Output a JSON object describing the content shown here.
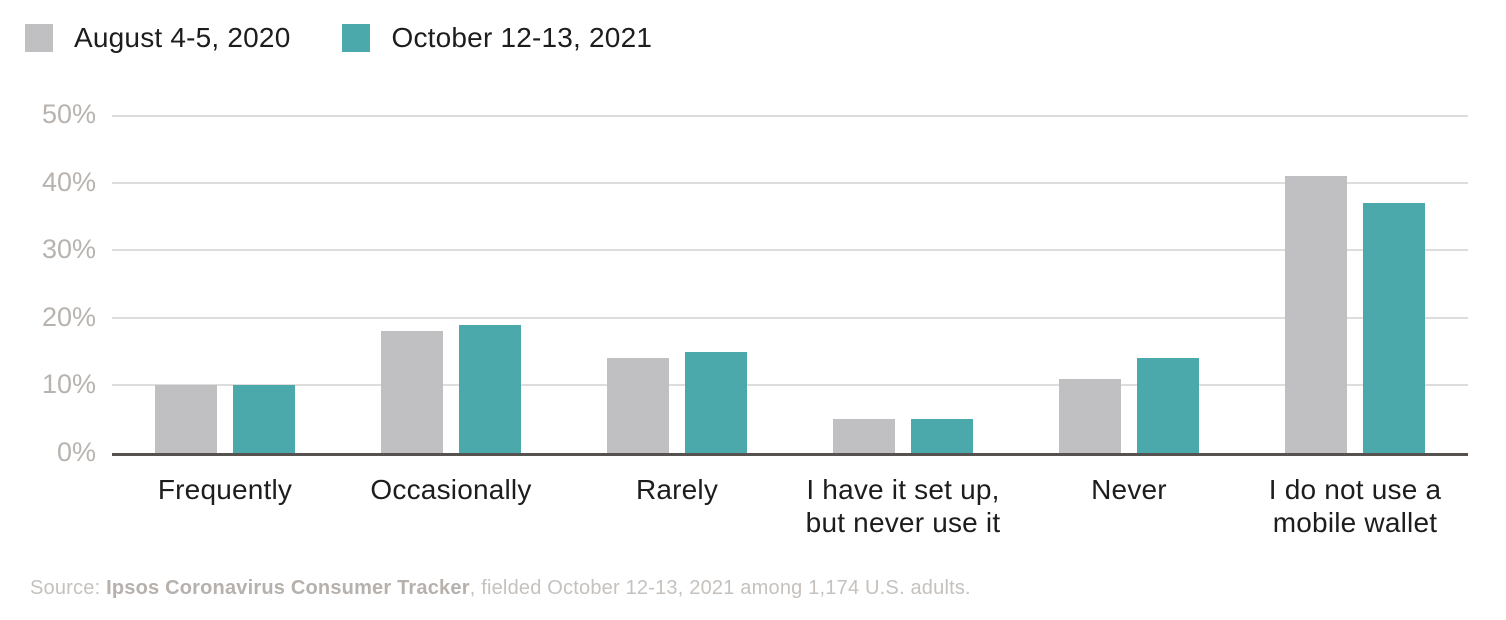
{
  "chart_data": {
    "type": "bar",
    "title": "",
    "categories": [
      "Frequently",
      "Occasionally",
      "Rarely",
      "I have it set up,\nbut never use it",
      "Never",
      "I do not use a\nmobile wallet"
    ],
    "series": [
      {
        "name": "August 4-5, 2020",
        "color": "#c0c0c2",
        "values": [
          10,
          18,
          14,
          5,
          11,
          41
        ]
      },
      {
        "name": "October 12-13, 2021",
        "color": "#4ba8ab",
        "values": [
          10,
          19,
          15,
          5,
          14,
          37
        ]
      }
    ],
    "ylim": [
      0,
      50
    ],
    "yticks": [
      0,
      10,
      20,
      30,
      40,
      50
    ],
    "ytick_suffix": "%",
    "value_unit": "%",
    "grid": "horizontal",
    "legend_position": "top-left"
  },
  "source": {
    "prefix": "Source: ",
    "bold": "Ipsos Coronavirus Consumer Tracker",
    "rest": ", fielded October 12-13, 2021 among 1,174 U.S. adults."
  },
  "colors": {
    "background": "#ffffff",
    "gridline": "#dfdddb",
    "baseline": "#56524f",
    "y_label_text": "#b8b3af",
    "x_label_text": "#1d1d1d",
    "legend_text": "#1d1d1d",
    "source_text": "#c6c1bd",
    "source_bold_text": "#b7b1ad"
  }
}
